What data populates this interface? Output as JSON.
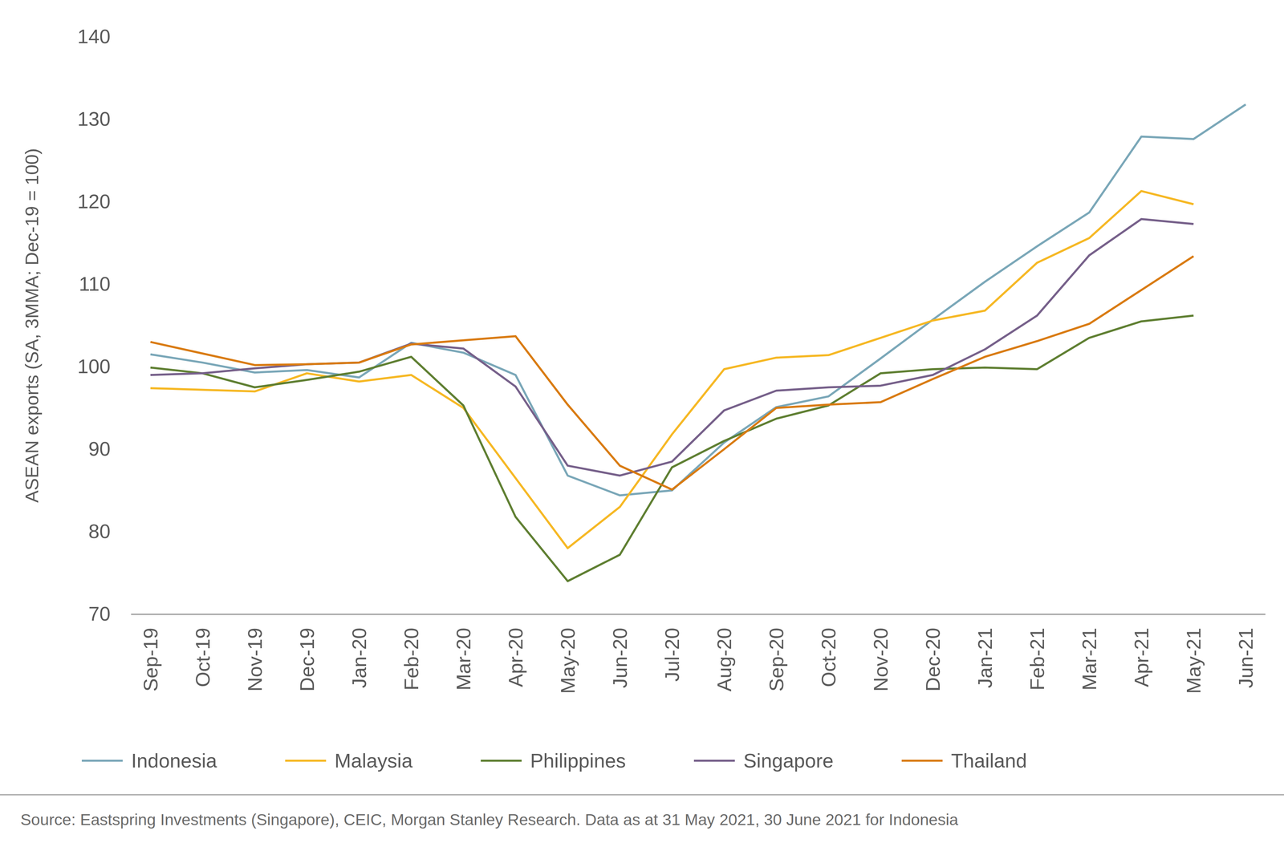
{
  "chart_data": {
    "type": "line",
    "y_label": "ASEAN exports (SA, 3MMA; Dec-19 = 100)",
    "annotations": [
      "Source: Eastspring Investments (Singapore), CEIC, Morgan Stanley Research. Data as at 31 May 2021, 30 June 2021 for Indonesia"
    ],
    "categories": [
      "Sep-19",
      "Oct-19",
      "Nov-19",
      "Dec-19",
      "Jan-20",
      "Feb-20",
      "Mar-20",
      "Apr-20",
      "May-20",
      "Jun-20",
      "Jul-20",
      "Aug-20",
      "Sep-20",
      "Oct-20",
      "Nov-20",
      "Dec-20",
      "Jan-21",
      "Feb-21",
      "Mar-21",
      "Apr-21",
      "May-21",
      "Jun-21"
    ],
    "series": [
      {
        "name": "Indonesia",
        "color": "#7aa7b8",
        "values": [
          101.5,
          100.5,
          99.3,
          99.6,
          98.7,
          102.9,
          101.7,
          99.0,
          86.8,
          84.4,
          85.0,
          90.8,
          95.1,
          96.4,
          101.0,
          105.7,
          110.3,
          114.6,
          118.7,
          127.9,
          127.6,
          131.8
        ]
      },
      {
        "name": "Malaysia",
        "color": "#f6b824",
        "values": [
          97.4,
          97.2,
          97.0,
          99.2,
          98.2,
          99.0,
          95.0,
          86.5,
          78.0,
          83.0,
          91.8,
          99.7,
          101.1,
          101.4,
          103.5,
          105.6,
          106.8,
          112.6,
          115.6,
          121.3,
          119.7,
          null
        ]
      },
      {
        "name": "Philippines",
        "color": "#5f7f32",
        "values": [
          99.9,
          99.2,
          97.5,
          98.4,
          99.4,
          101.2,
          95.3,
          81.8,
          74.0,
          77.2,
          87.8,
          91.0,
          93.7,
          95.3,
          99.2,
          99.7,
          99.9,
          99.7,
          103.5,
          105.5,
          106.2,
          null
        ]
      },
      {
        "name": "Singapore",
        "color": "#76608a",
        "values": [
          99.0,
          99.2,
          99.8,
          100.3,
          100.5,
          102.8,
          102.2,
          97.6,
          88.0,
          86.8,
          88.5,
          94.7,
          97.1,
          97.5,
          97.7,
          99.0,
          102.1,
          106.2,
          113.5,
          117.9,
          117.3,
          null
        ]
      },
      {
        "name": "Thailand",
        "color": "#d97b12",
        "values": [
          103.0,
          101.6,
          100.2,
          100.3,
          100.5,
          102.7,
          103.2,
          103.7,
          95.4,
          88.0,
          85.1,
          90.0,
          95.0,
          95.4,
          95.7,
          98.5,
          101.2,
          103.1,
          105.2,
          109.3,
          113.4,
          null
        ]
      }
    ],
    "ylim": [
      70,
      140
    ],
    "yticks": [
      70,
      80,
      90,
      100,
      110,
      120,
      130,
      140
    ],
    "grid": false,
    "legend": "bottom"
  }
}
